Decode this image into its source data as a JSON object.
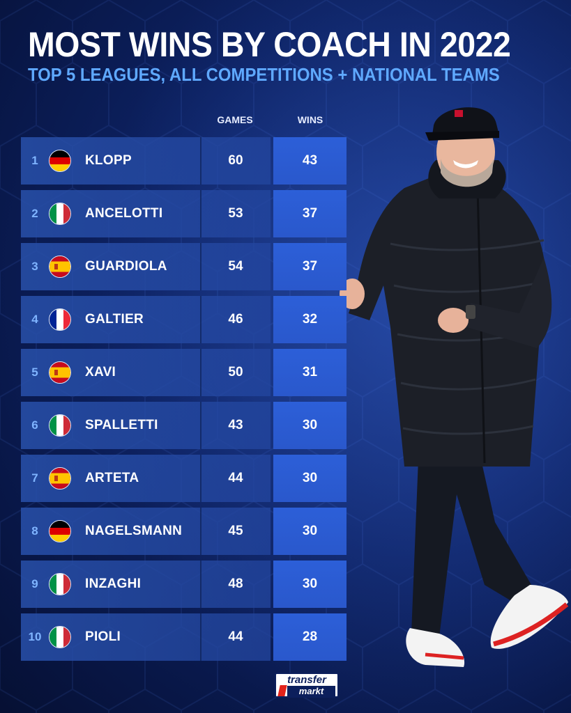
{
  "title": "MOST WINS BY COACH IN 2022",
  "subtitle": "TOP 5 LEAGUES, ALL COMPETITIONS + NATIONAL TEAMS",
  "columns": {
    "games": "GAMES",
    "wins": "WINS"
  },
  "logo": {
    "line1": "transfer",
    "line2": "markt"
  },
  "colors": {
    "background": "#0d2263",
    "row": "#2850aa",
    "wins_cell": "#2c5fd8",
    "rank_text": "#7fb4ff",
    "subtitle": "#5fa9ff"
  },
  "chart_data": {
    "type": "table",
    "title": "MOST WINS BY COACH IN 2022",
    "subtitle": "TOP 5 LEAGUES, ALL COMPETITIONS + NATIONAL TEAMS",
    "columns": [
      "GAMES",
      "WINS"
    ],
    "rows": [
      {
        "rank": "1",
        "flag": "germany-flag-icon",
        "name": "KLOPP",
        "games": "60",
        "wins": "43"
      },
      {
        "rank": "2",
        "flag": "italy-flag-icon",
        "name": "ANCELOTTI",
        "games": "53",
        "wins": "37"
      },
      {
        "rank": "3",
        "flag": "spain-flag-icon",
        "name": "GUARDIOLA",
        "games": "54",
        "wins": "37"
      },
      {
        "rank": "4",
        "flag": "france-flag-icon",
        "name": "GALTIER",
        "games": "46",
        "wins": "32"
      },
      {
        "rank": "5",
        "flag": "spain-flag-icon",
        "name": "XAVI",
        "games": "50",
        "wins": "31"
      },
      {
        "rank": "6",
        "flag": "italy-flag-icon",
        "name": "SPALLETTI",
        "games": "43",
        "wins": "30"
      },
      {
        "rank": "7",
        "flag": "spain-flag-icon",
        "name": "ARTETA",
        "games": "44",
        "wins": "30"
      },
      {
        "rank": "8",
        "flag": "germany-flag-icon",
        "name": "NAGELSMANN",
        "games": "45",
        "wins": "30"
      },
      {
        "rank": "9",
        "flag": "italy-flag-icon",
        "name": "INZAGHI",
        "games": "48",
        "wins": "30"
      },
      {
        "rank": "10",
        "flag": "italy-flag-icon",
        "name": "PIOLI",
        "games": "44",
        "wins": "28"
      }
    ]
  }
}
